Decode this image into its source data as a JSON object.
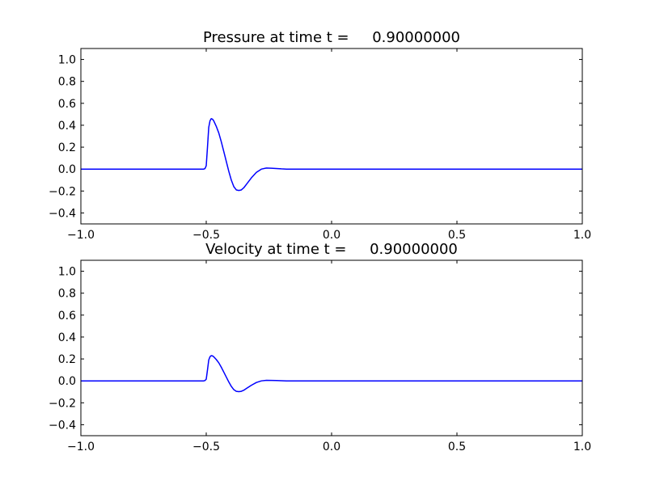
{
  "chart_data": [
    {
      "type": "line",
      "title": "Pressure at time t =     0.90000000",
      "xlabel": "",
      "ylabel": "",
      "xlim": [
        -1.0,
        1.0
      ],
      "ylim": [
        -0.5,
        1.1
      ],
      "xticks": [
        "−1.0",
        "−0.5",
        "0.0",
        "0.5",
        "1.0"
      ],
      "yticks": [
        "−0.4",
        "−0.2",
        "0.0",
        "0.2",
        "0.4",
        "0.6",
        "0.8",
        "1.0"
      ],
      "grid": false,
      "color": "#0000ff",
      "series": [
        {
          "x": [
            -1.0,
            -0.6,
            -0.51,
            -0.505,
            -0.5,
            -0.495,
            -0.49,
            -0.485,
            -0.48,
            -0.475,
            -0.47,
            -0.46,
            -0.45,
            -0.44,
            -0.43,
            -0.42,
            -0.41,
            -0.4,
            -0.39,
            -0.38,
            -0.37,
            -0.36,
            -0.35,
            -0.34,
            -0.32,
            -0.3,
            -0.28,
            -0.26,
            -0.24,
            -0.22,
            -0.2,
            -0.18,
            -0.15,
            -0.1,
            0.0,
            0.5,
            1.0
          ],
          "y": [
            0.0,
            0.0,
            0.0,
            0.005,
            0.03,
            0.2,
            0.38,
            0.44,
            0.46,
            0.455,
            0.44,
            0.39,
            0.33,
            0.25,
            0.16,
            0.07,
            -0.02,
            -0.1,
            -0.16,
            -0.19,
            -0.195,
            -0.19,
            -0.17,
            -0.14,
            -0.08,
            -0.03,
            0.0,
            0.01,
            0.008,
            0.005,
            0.002,
            0.0,
            0.0,
            0.0,
            0.0,
            0.0,
            0.0
          ]
        }
      ]
    },
    {
      "type": "line",
      "title": "Velocity at time t =     0.90000000",
      "xlabel": "",
      "ylabel": "",
      "xlim": [
        -1.0,
        1.0
      ],
      "ylim": [
        -0.5,
        1.1
      ],
      "xticks": [
        "−1.0",
        "−0.5",
        "0.0",
        "0.5",
        "1.0"
      ],
      "yticks": [
        "−0.4",
        "−0.2",
        "0.0",
        "0.2",
        "0.4",
        "0.6",
        "0.8",
        "1.0"
      ],
      "grid": false,
      "color": "#0000ff",
      "series": [
        {
          "x": [
            -1.0,
            -0.6,
            -0.51,
            -0.505,
            -0.5,
            -0.495,
            -0.49,
            -0.485,
            -0.48,
            -0.475,
            -0.47,
            -0.46,
            -0.45,
            -0.44,
            -0.43,
            -0.42,
            -0.41,
            -0.4,
            -0.39,
            -0.38,
            -0.37,
            -0.36,
            -0.35,
            -0.34,
            -0.32,
            -0.3,
            -0.28,
            -0.26,
            -0.24,
            -0.22,
            -0.2,
            -0.18,
            -0.15,
            -0.1,
            0.0,
            0.5,
            1.0
          ],
          "y": [
            0.0,
            0.0,
            0.0,
            0.003,
            0.015,
            0.1,
            0.19,
            0.22,
            0.23,
            0.228,
            0.22,
            0.195,
            0.165,
            0.125,
            0.08,
            0.035,
            -0.01,
            -0.05,
            -0.08,
            -0.095,
            -0.098,
            -0.095,
            -0.085,
            -0.07,
            -0.04,
            -0.015,
            0.0,
            0.005,
            0.004,
            0.003,
            0.001,
            0.0,
            0.0,
            0.0,
            0.0,
            0.0,
            0.0
          ]
        }
      ]
    }
  ]
}
